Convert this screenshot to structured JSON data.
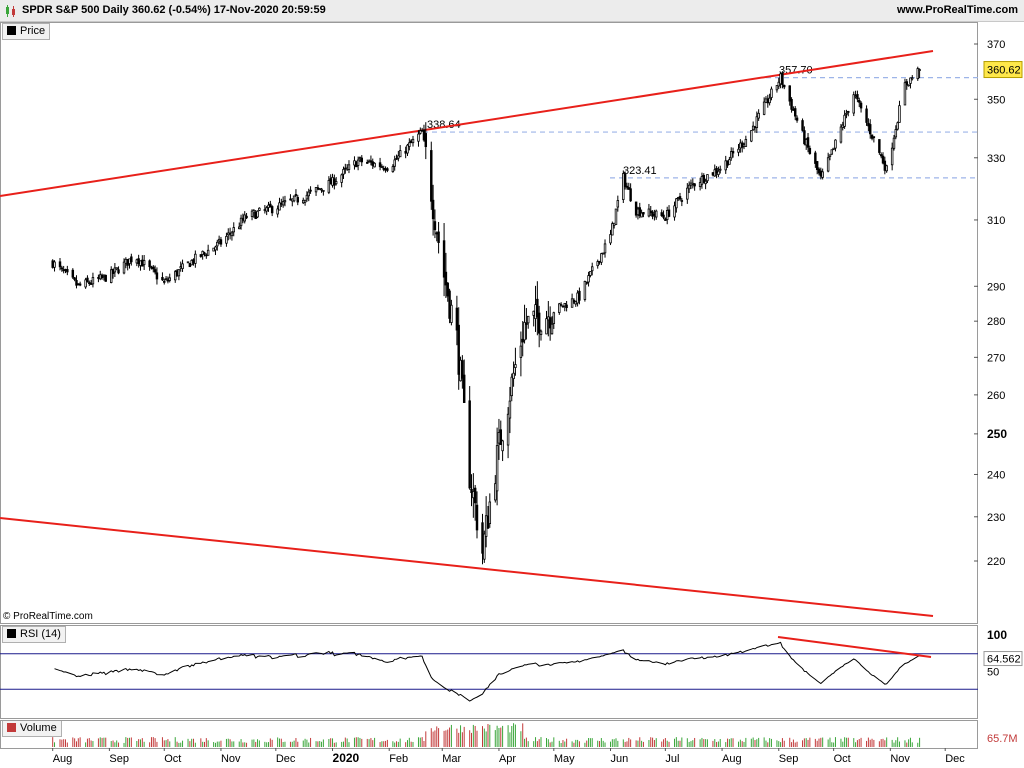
{
  "header": {
    "title": "SPDR S&P 500 Daily 360.62 (-0.54%) 17-Nov-2020 20:59:59",
    "site": "www.ProRealTime.com",
    "icon": "candlestick-icon"
  },
  "panels": {
    "price_label": "Price",
    "rsi_label": "RSI (14)",
    "volume_label": "Volume",
    "copyright": "© ProRealTime.com"
  },
  "colors": {
    "up_candle": "#ffffff",
    "down_candle": "#000000",
    "trendline": "#e8201a",
    "level_line": "#9db4e8",
    "rsi_band": "#1a1a8c",
    "rsi_overbought_fill": "#c8a0a0",
    "volume_up": "#3aa63a",
    "volume_down": "#c23a3a"
  },
  "chart_data": [
    {
      "type": "candlestick",
      "title": "SPDR S&P 500 Daily",
      "y_ticks": [
        370,
        350,
        330,
        310,
        290,
        280,
        270,
        260,
        250,
        240,
        230,
        220
      ],
      "ylim": [
        210,
        375
      ],
      "scale": "log",
      "x_ticks": [
        "Aug",
        "Sep",
        "Oct",
        "Nov",
        "Dec",
        "2020",
        "Feb",
        "Mar",
        "Apr",
        "May",
        "Jun",
        "Jul",
        "Aug",
        "Sep",
        "Oct",
        "Nov",
        "Dec"
      ],
      "last_value": "360.62",
      "annotations": [
        {
          "label": "338.64",
          "value": 338.64
        },
        {
          "label": "357.70",
          "value": 357.7
        },
        {
          "label": "323.41",
          "value": 323.41
        }
      ],
      "series": [
        {
          "name": "Price",
          "x": [
            "2019-08-01",
            "2019-08-15",
            "2019-09-01",
            "2019-09-15",
            "2019-10-01",
            "2019-10-15",
            "2019-11-01",
            "2019-11-15",
            "2019-12-01",
            "2019-12-15",
            "2020-01-01",
            "2020-01-15",
            "2020-02-01",
            "2020-02-19",
            "2020-03-01",
            "2020-03-09",
            "2020-03-16",
            "2020-03-23",
            "2020-04-01",
            "2020-04-15",
            "2020-05-01",
            "2020-05-15",
            "2020-06-01",
            "2020-06-08",
            "2020-06-15",
            "2020-07-01",
            "2020-07-15",
            "2020-08-01",
            "2020-08-15",
            "2020-09-02",
            "2020-09-15",
            "2020-09-24",
            "2020-10-01",
            "2020-10-12",
            "2020-10-30",
            "2020-11-09",
            "2020-11-17"
          ],
          "values": [
            297,
            290,
            293,
            299,
            291,
            297,
            303,
            311,
            314,
            317,
            322,
            329,
            327,
            338.64,
            296,
            275,
            240,
            222,
            247,
            279,
            283,
            287,
            305,
            323.41,
            313,
            311,
            321,
            327,
            337,
            357.7,
            336,
            323,
            333,
            352,
            326,
            355,
            360.62
          ]
        }
      ]
    },
    {
      "type": "line",
      "title": "RSI (14)",
      "y_ticks": [
        100,
        50
      ],
      "ylim": [
        0,
        100
      ],
      "levels": [
        70,
        30
      ],
      "x": [
        "2019-08-01",
        "2019-09-01",
        "2019-10-01",
        "2019-11-01",
        "2019-12-01",
        "2020-01-01",
        "2020-02-19",
        "2020-03-16",
        "2020-04-01",
        "2020-05-01",
        "2020-06-08",
        "2020-07-01",
        "2020-08-01",
        "2020-09-02",
        "2020-09-24",
        "2020-10-12",
        "2020-10-30",
        "2020-11-17"
      ],
      "values": [
        52,
        48,
        50,
        63,
        66,
        71,
        60,
        20,
        50,
        57,
        66,
        60,
        66,
        80,
        42,
        60,
        38,
        64.562
      ],
      "last_value": "64.562"
    },
    {
      "type": "bar",
      "title": "Volume",
      "last_value": "65.7M"
    }
  ]
}
